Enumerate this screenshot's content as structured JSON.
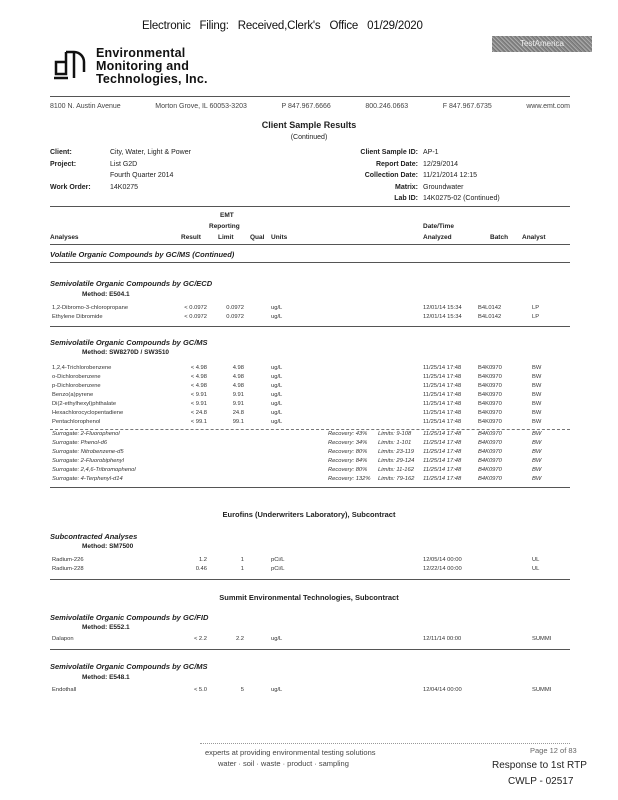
{
  "filing_stamp": "Electronic Filing: Received,Clerk's Office 01/29/2020",
  "stamp_text": "TestAmerica",
  "company": {
    "name_lines": [
      "Environmental",
      "Monitoring and",
      "Technologies, Inc."
    ],
    "address": [
      "8100 N. Austin Avenue",
      "Morton Grove, IL 60053-3203",
      "P 847.967.6666",
      "800.246.0663",
      "F 847.967.6735",
      "www.emt.com"
    ]
  },
  "title": "Client Sample Results",
  "subtitle": "(Continued)",
  "info": {
    "client_label": "Client:",
    "client": "City, Water, Light & Power",
    "project_label": "Project:",
    "project": "List G2D",
    "project2": "Fourth Quarter 2014",
    "work_order_label": "Work Order:",
    "work_order": "14K0275",
    "sample_id_label": "Client Sample ID:",
    "sample_id": "AP-1",
    "report_date_label": "Report Date:",
    "report_date": "12/29/2014",
    "collection_date_label": "Collection Date:",
    "collection_date": "11/21/2014  12:15",
    "matrix_label": "Matrix:",
    "matrix": "Groundwater",
    "lab_id_label": "Lab ID:",
    "lab_id": "14K0275-02 (Continued)"
  },
  "columns": {
    "analyses": "Analyses",
    "result": "Result",
    "emt": "EMT",
    "reporting": "Reporting",
    "limit": "Limit",
    "qual": "Qual",
    "units": "Units",
    "datetime": "Date/Time",
    "analyzed": "Analyzed",
    "batch": "Batch",
    "analyst": "Analyst"
  },
  "sections": [
    {
      "title": "Volatile Organic Compounds by GC/MS (Continued)"
    },
    {
      "title": "Semivolatile Organic Compounds by GC/ECD",
      "method": "Method:  E504.1",
      "rows": [
        [
          "1,2-Dibromo-3-chloropropane",
          "< 0.0972",
          "0.0972",
          "ug/L",
          "12/01/14 15:34",
          "B4L0142",
          "LP"
        ],
        [
          "Ethylene Dibromide",
          "< 0.0972",
          "0.0972",
          "ug/L",
          "12/01/14 15:34",
          "B4L0142",
          "LP"
        ]
      ]
    },
    {
      "title": "Semivolatile Organic Compounds by GC/MS",
      "method": "Method:  SW8270D / SW3510",
      "rows": [
        [
          "1,2,4-Trichlorobenzene",
          "< 4.98",
          "4.98",
          "ug/L",
          "11/25/14 17:48",
          "B4K0970",
          "BW"
        ],
        [
          "o-Dichlorobenzene",
          "< 4.98",
          "4.98",
          "ug/L",
          "11/25/14 17:48",
          "B4K0970",
          "BW"
        ],
        [
          "p-Dichlorobenzene",
          "< 4.98",
          "4.98",
          "ug/L",
          "11/25/14 17:48",
          "B4K0970",
          "BW"
        ],
        [
          "Benzo(a)pyrene",
          "< 9.91",
          "9.91",
          "ug/L",
          "11/25/14 17:48",
          "B4K0970",
          "BW"
        ],
        [
          "Di(2-ethylhexyl)phthalate",
          "< 9.91",
          "9.91",
          "ug/L",
          "11/25/14 17:48",
          "B4K0970",
          "BW"
        ],
        [
          "Hexachlorocyclopentadiene",
          "< 24.8",
          "24.8",
          "ug/L",
          "11/25/14 17:48",
          "B4K0970",
          "BW"
        ],
        [
          "Pentachlorophenol",
          "< 99.1",
          "99.1",
          "ug/L",
          "11/25/14 17:48",
          "B4K0970",
          "BW"
        ]
      ],
      "surrogates": [
        [
          "Surrogate: 2-Fluorophenol",
          "Recovery: 43%",
          "Limits: 9-108",
          "11/25/14 17:48",
          "B4K0970",
          "BW"
        ],
        [
          "Surrogate: Phenol-d6",
          "Recovery: 34%",
          "Limits: 1-101",
          "11/25/14 17:48",
          "B4K0970",
          "BW"
        ],
        [
          "Surrogate: Nitrobenzene-d5",
          "Recovery: 80%",
          "Limits: 23-119",
          "11/25/14 17:48",
          "B4K0970",
          "BW"
        ],
        [
          "Surrogate: 2-Fluorobiphenyl",
          "Recovery: 84%",
          "Limits: 29-124",
          "11/25/14 17:48",
          "B4K0970",
          "BW"
        ],
        [
          "Surrogate: 2,4,6-Tribromophenol",
          "Recovery: 80%",
          "Limits: 11-162",
          "11/25/14 17:48",
          "B4K0970",
          "BW"
        ],
        [
          "Surrogate: 4-Terphenyl-d14",
          "Recovery: 132%",
          "Limits: 79-162",
          "11/25/14 17:48",
          "B4K0970",
          "BW"
        ]
      ]
    },
    {
      "heading": "Eurofins (Underwriters Laboratory), Subcontract"
    },
    {
      "title": "Subcontracted Analyses",
      "method": "Method:  SM7500",
      "rows": [
        [
          "Radium-226",
          "1.2",
          "1",
          "pCi/L",
          "12/05/14 00:00",
          "",
          "UL"
        ],
        [
          "Radium-228",
          "0.46",
          "1",
          "pCi/L",
          "12/22/14 00:00",
          "",
          "UL"
        ]
      ]
    },
    {
      "heading": "Summit Environmental Technologies, Subcontract"
    },
    {
      "title": "Semivolatile Organic Compounds by GC/FID",
      "method": "Method:  E552.1",
      "rows": [
        [
          "Dalapon",
          "< 2.2",
          "2.2",
          "ug/L",
          "12/11/14 00:00",
          "",
          "SUMMI"
        ]
      ]
    },
    {
      "title": "Semivolatile Organic Compounds by GC/MS",
      "method": "Method:  E548.1",
      "rows": [
        [
          "Endothall",
          "< 5.0",
          "5",
          "ug/L",
          "12/04/14 00:00",
          "",
          "SUMMI"
        ]
      ]
    }
  ],
  "footer": {
    "tagline": "experts at providing environmental testing solutions",
    "services": "water  ·  soil  ·  waste  ·  product  ·  sampling",
    "page": "Page 12 of 83",
    "response": "Response to 1st RTP",
    "bates": "CWLP - 02517"
  }
}
